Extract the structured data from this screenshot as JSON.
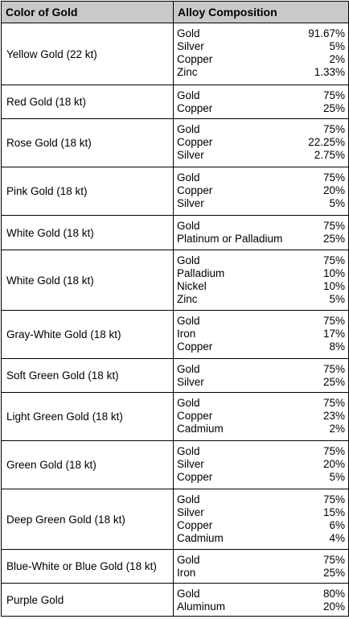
{
  "headers": {
    "color": "Color of Gold",
    "composition": "Alloy Composition"
  },
  "rows": [
    {
      "color": "Yellow Gold (22 kt)",
      "h": 77,
      "alloys": [
        [
          "Gold",
          "91.67%"
        ],
        [
          "Silver",
          "5%"
        ],
        [
          "Copper",
          "2%"
        ],
        [
          "Zinc",
          "1.33%"
        ]
      ]
    },
    {
      "color": "Red Gold (18 kt)",
      "h": 42,
      "alloys": [
        [
          "Gold",
          "75%"
        ],
        [
          "Copper",
          "25%"
        ]
      ]
    },
    {
      "color": "Rose Gold (18 kt)",
      "h": 60,
      "alloys": [
        [
          "Gold",
          "75%"
        ],
        [
          "Copper",
          "22.25%"
        ],
        [
          "Silver",
          "2.75%"
        ]
      ]
    },
    {
      "color": "Pink Gold (18 kt)",
      "h": 60,
      "alloys": [
        [
          "Gold",
          "75%"
        ],
        [
          "Copper",
          "20%"
        ],
        [
          "Silver",
          "5%"
        ]
      ]
    },
    {
      "color": "White Gold (18 kt)",
      "h": 43,
      "alloys": [
        [
          "Gold",
          "75%"
        ],
        [
          "Platinum or Palladium",
          "25%"
        ]
      ]
    },
    {
      "color": "White Gold (18 kt)",
      "h": 75,
      "alloys": [
        [
          "Gold",
          "75%"
        ],
        [
          "Palladium",
          "10%"
        ],
        [
          "Nickel",
          "10%"
        ],
        [
          "Zinc",
          "5%"
        ]
      ]
    },
    {
      "color": "Gray-White Gold (18 kt)",
      "h": 60,
      "alloys": [
        [
          "Gold",
          "75%"
        ],
        [
          "Iron",
          "17%"
        ],
        [
          "Copper",
          "8%"
        ]
      ]
    },
    {
      "color": "Soft Green Gold (18 kt)",
      "h": 42,
      "alloys": [
        [
          "Gold",
          "75%"
        ],
        [
          "Silver",
          "25%"
        ]
      ]
    },
    {
      "color": "Light Green Gold (18 kt)",
      "h": 60,
      "alloys": [
        [
          "Gold",
          "75%"
        ],
        [
          "Copper",
          "23%"
        ],
        [
          "Cadmium",
          "2%"
        ]
      ]
    },
    {
      "color": "Green Gold (18 kt)",
      "h": 60,
      "alloys": [
        [
          "Gold",
          "75%"
        ],
        [
          "Silver",
          "20%"
        ],
        [
          "Copper",
          "5%"
        ]
      ]
    },
    {
      "color": "Deep Green Gold (18 kt)",
      "h": 75,
      "alloys": [
        [
          "Gold",
          "75%"
        ],
        [
          "Silver",
          "15%"
        ],
        [
          "Copper",
          "6%"
        ],
        [
          "Cadmium",
          "4%"
        ]
      ]
    },
    {
      "color": "Blue-White or Blue Gold (18 kt)",
      "h": 42,
      "alloys": [
        [
          "Gold",
          "75%"
        ],
        [
          "Iron",
          "25%"
        ]
      ]
    },
    {
      "color": "Purple Gold",
      "h": 41,
      "alloys": [
        [
          "Gold",
          "80%"
        ],
        [
          "Aluminum",
          "20%"
        ]
      ]
    }
  ]
}
